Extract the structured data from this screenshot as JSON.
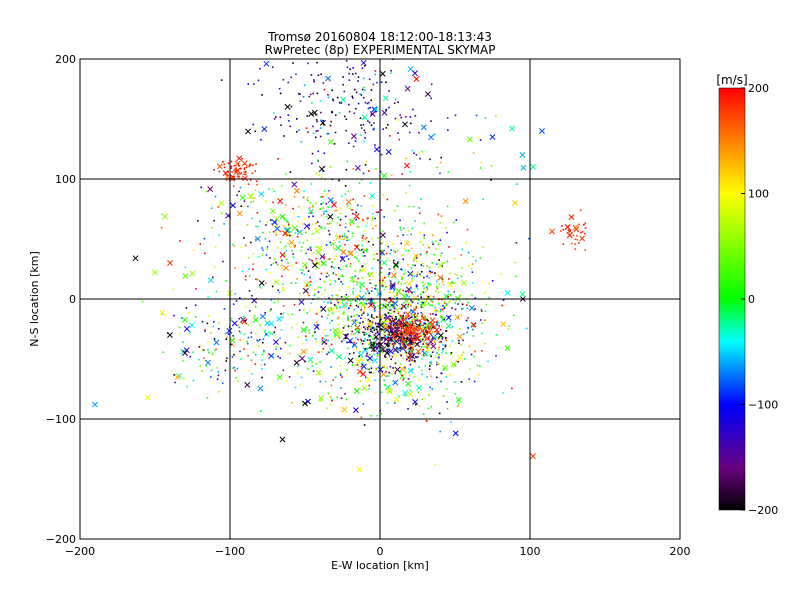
{
  "chart_data": {
    "type": "scatter",
    "title": "Tromsø 20160804 18:12:00-18:13:43",
    "subtitle": "RwPretec (8p) EXPERIMENTAL SKYMAP",
    "xlabel": "E-W location [km]",
    "ylabel": "N-S location [km]",
    "xlim": [
      -200,
      200
    ],
    "ylim": [
      -200,
      200
    ],
    "x_ticks": [
      "−200",
      "−100",
      "0",
      "100",
      "200"
    ],
    "y_ticks": [
      "−200",
      "−100",
      "0",
      "100",
      "200"
    ],
    "x_tick_values": [
      -200,
      -100,
      0,
      100,
      200
    ],
    "y_tick_values": [
      -200,
      -100,
      0,
      100,
      200
    ],
    "grid": true,
    "colorbar": {
      "label": "[m/s]",
      "range": [
        -200,
        200
      ],
      "ticks": [
        "200",
        "100",
        "0",
        "−100",
        "−200"
      ],
      "tick_values": [
        200,
        100,
        0,
        -100,
        -200
      ],
      "colormap": "rainbow (black-purple-blue-cyan-green-yellow-red)"
    },
    "clusters": [
      {
        "name": "north",
        "cx": -25,
        "cy": 160,
        "sx": 28,
        "sy": 22,
        "n": 220,
        "vmean": -150,
        "vstd": 60
      },
      {
        "name": "west-red",
        "cx": -93,
        "cy": 106,
        "sx": 6,
        "sy": 5,
        "n": 70,
        "vmean": 185,
        "vstd": 12
      },
      {
        "name": "east-red",
        "cx": 128,
        "cy": 55,
        "sx": 5,
        "sy": 7,
        "n": 35,
        "vmean": 180,
        "vstd": 15
      },
      {
        "name": "central",
        "cx": 10,
        "cy": -15,
        "sx": 30,
        "sy": 35,
        "n": 1300,
        "vmean": 10,
        "vstd": 110
      },
      {
        "name": "core-dark",
        "cx": 10,
        "cy": -30,
        "sx": 14,
        "sy": 10,
        "n": 320,
        "vmean": -175,
        "vstd": 25
      },
      {
        "name": "core-red",
        "cx": 20,
        "cy": -25,
        "sx": 8,
        "sy": 8,
        "n": 160,
        "vmean": 175,
        "vstd": 18
      },
      {
        "name": "diagonal-band",
        "cx": -45,
        "cy": 55,
        "sx": 35,
        "sy": 25,
        "n": 450,
        "vmean": 30,
        "vstd": 120
      },
      {
        "name": "west-spread",
        "cx": -95,
        "cy": -35,
        "sx": 25,
        "sy": 25,
        "n": 220,
        "vmean": -30,
        "vstd": 110
      },
      {
        "name": "upper-spread",
        "cx": 20,
        "cy": 130,
        "sx": 40,
        "sy": 25,
        "n": 60,
        "vmean": -10,
        "vstd": 120
      }
    ],
    "sparse_points": [
      {
        "x": -190,
        "y": -88,
        "v": -60
      },
      {
        "x": -163,
        "y": 34,
        "v": -200
      },
      {
        "x": -150,
        "y": 22,
        "v": 60
      },
      {
        "x": -140,
        "y": 30,
        "v": 180
      },
      {
        "x": -155,
        "y": -82,
        "v": 90
      },
      {
        "x": -135,
        "y": -65,
        "v": 130
      },
      {
        "x": -65,
        "y": -117,
        "v": -200
      },
      {
        "x": -50,
        "y": -87,
        "v": -200
      },
      {
        "x": 102,
        "y": -131,
        "v": 180
      },
      {
        "x": 108,
        "y": 140,
        "v": -80
      },
      {
        "x": 95,
        "y": 120,
        "v": -60
      },
      {
        "x": 88,
        "y": 142,
        "v": -20
      },
      {
        "x": 75,
        "y": 135,
        "v": -90
      },
      {
        "x": 60,
        "y": 133,
        "v": 40
      },
      {
        "x": 102,
        "y": 110,
        "v": -20
      },
      {
        "x": 90,
        "y": 80,
        "v": 120
      },
      {
        "x": -98,
        "y": 78,
        "v": -100
      },
      {
        "x": 85,
        "y": 5,
        "v": -40
      },
      {
        "x": 95,
        "y": 4,
        "v": -20
      },
      {
        "x": -140,
        "y": -30,
        "v": -190
      },
      {
        "x": -130,
        "y": -45,
        "v": -180
      }
    ]
  }
}
